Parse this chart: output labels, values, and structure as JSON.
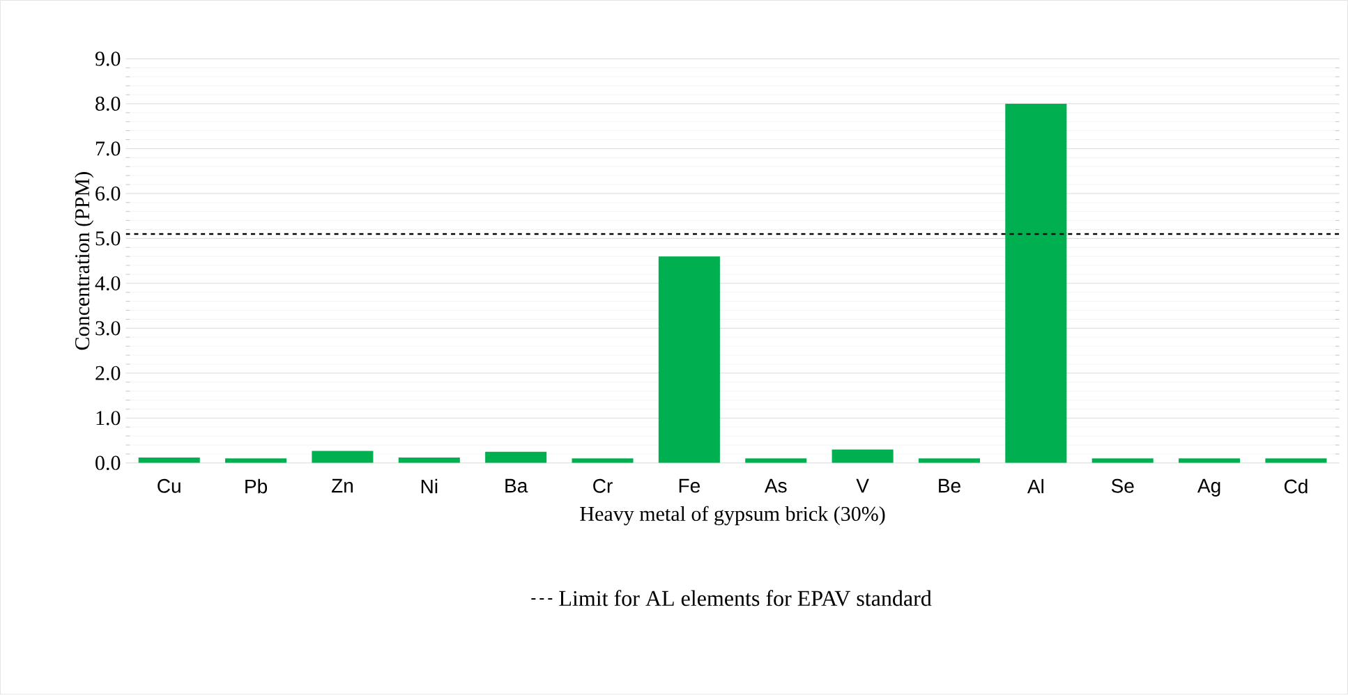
{
  "chart_data": {
    "type": "bar",
    "xlabel": "Heavy metal of gypsum brick (30%)",
    "ylabel": "Concentration (PPM)",
    "categories": [
      "Cu",
      "Pb",
      "Zn",
      "Ni",
      "Ba",
      "Cr",
      "Fe",
      "As",
      "V",
      "Be",
      "Al",
      "Se",
      "Ag",
      "Cd"
    ],
    "values": [
      0.12,
      0.1,
      0.27,
      0.12,
      0.25,
      0.1,
      4.6,
      0.1,
      0.3,
      0.1,
      8.0,
      0.1,
      0.1,
      0.1
    ],
    "color": "#00b050",
    "ylim": [
      0,
      9
    ],
    "yticks": [
      {
        "value": 0,
        "label": "0.0"
      },
      {
        "value": 1,
        "label": "1.0"
      },
      {
        "value": 2,
        "label": "2.0"
      },
      {
        "value": 3,
        "label": "3.0"
      },
      {
        "value": 4,
        "label": "4.0"
      },
      {
        "value": 5,
        "label": "5.0"
      },
      {
        "value": 6,
        "label": "6.0"
      },
      {
        "value": 7,
        "label": "7.0"
      },
      {
        "value": 8,
        "label": "8.0"
      },
      {
        "value": 9,
        "label": "9.0"
      }
    ],
    "ref_lines": [
      {
        "axis": "y",
        "value": 5.1,
        "label": "Limit for AL elements for EPAV standard",
        "color": "#000000",
        "line_style": "dashed"
      }
    ],
    "grid": "y",
    "legend": "bottom"
  }
}
